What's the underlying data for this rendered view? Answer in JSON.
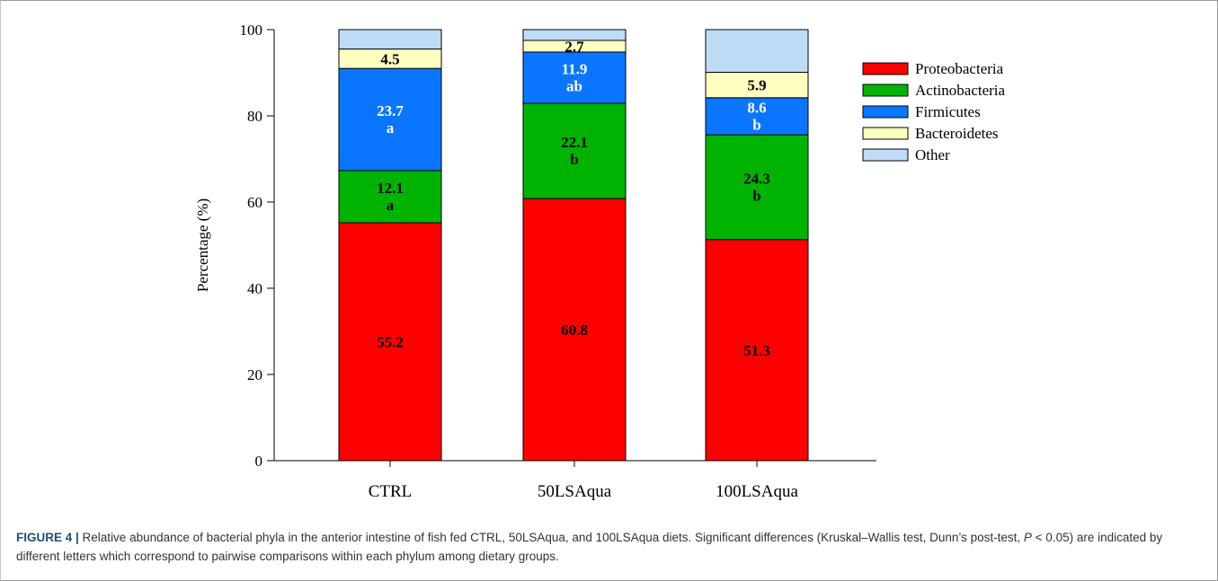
{
  "chart_data": {
    "type": "bar",
    "stacked": true,
    "ylabel": "Percentage (%)",
    "ylim": [
      0,
      100
    ],
    "yticks": [
      0,
      20,
      40,
      60,
      80,
      100
    ],
    "categories": [
      "CTRL",
      "50LSAqua",
      "100LSAqua"
    ],
    "series": [
      {
        "name": "Proteobacteria",
        "color": "#ff0000",
        "values": [
          55.2,
          60.8,
          51.3
        ],
        "labels": [
          "55.2",
          "60.8",
          "51.3"
        ],
        "letters": [
          "",
          "",
          ""
        ],
        "label_color": "#000000"
      },
      {
        "name": "Actinobacteria",
        "color": "#00b300",
        "values": [
          12.1,
          22.1,
          24.3
        ],
        "labels": [
          "12.1",
          "22.1",
          "24.3"
        ],
        "letters": [
          "a",
          "b",
          "b"
        ],
        "label_color": "#000000"
      },
      {
        "name": "Firmicutes",
        "color": "#0a76ff",
        "values": [
          23.7,
          11.9,
          8.6
        ],
        "labels": [
          "23.7",
          "11.9",
          "8.6"
        ],
        "letters": [
          "a",
          "ab",
          "b"
        ],
        "label_color": "#ffffff"
      },
      {
        "name": "Bacteroidetes",
        "color": "#ffffc0",
        "values": [
          4.5,
          2.7,
          5.9
        ],
        "labels": [
          "4.5",
          "2.7",
          "5.9"
        ],
        "letters": [
          "",
          "",
          ""
        ],
        "label_color": "#000000"
      },
      {
        "name": "Other",
        "color": "#bfdcf7",
        "values": [
          4.5,
          2.5,
          9.9
        ],
        "labels": [
          "",
          "",
          ""
        ],
        "letters": [
          "",
          "",
          ""
        ],
        "label_color": "#000000"
      }
    ],
    "legend_position": "right",
    "grid": false
  },
  "caption": {
    "label": "FIGURE 4 |",
    "text1": " Relative abundance of bacterial phyla in the anterior intestine of fish fed CTRL, 50LSAqua, and 100LSAqua diets. Significant differences (Kruskal–Wallis test, Dunn’s post-test, ",
    "p_symbol": "P",
    "text2": " < 0.05) are indicated by different letters which correspond to pairwise comparisons within each phylum among dietary groups."
  }
}
